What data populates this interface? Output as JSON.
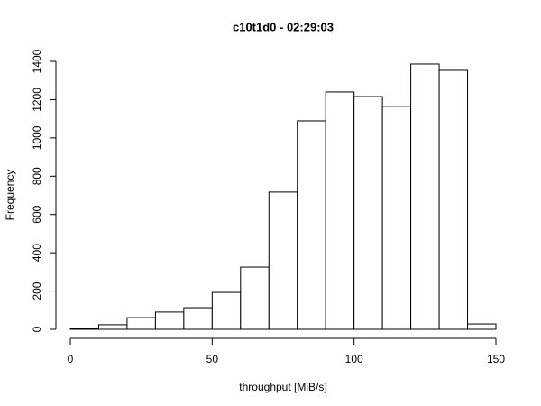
{
  "chart_data": {
    "type": "histogram",
    "title": "c10t1d0 - 02:29:03",
    "x_label": "throughput [MiB/s]",
    "y_label": "Frequency",
    "bins": [
      0,
      10,
      20,
      30,
      40,
      50,
      60,
      70,
      80,
      90,
      100,
      110,
      120,
      130,
      140,
      150
    ],
    "values": [
      3,
      24,
      61,
      90,
      113,
      193,
      325,
      717,
      1089,
      1240,
      1216,
      1165,
      1386,
      1353,
      28
    ],
    "color": "#ffffff",
    "edge_color": "#000000",
    "xlim": [
      0,
      150
    ],
    "xticks": [
      0,
      50,
      100,
      150
    ],
    "ylim": [
      0,
      1400
    ],
    "yticks": [
      0,
      200,
      400,
      600,
      800,
      1000,
      1200,
      1400
    ]
  }
}
